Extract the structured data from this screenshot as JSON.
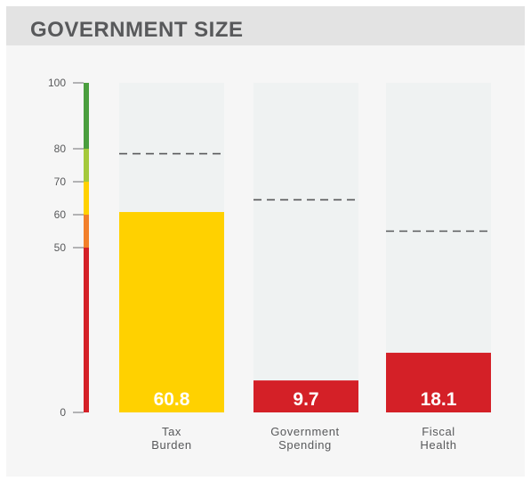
{
  "header": {
    "title": "GOVERNMENT SIZE"
  },
  "chart_data": {
    "type": "bar",
    "title": "GOVERNMENT SIZE",
    "categories": [
      {
        "lines": [
          "Tax",
          "Burden"
        ]
      },
      {
        "lines": [
          "Government",
          "Spending"
        ]
      },
      {
        "lines": [
          "Fiscal",
          "Health"
        ]
      }
    ],
    "values": [
      60.8,
      9.7,
      18.1
    ],
    "value_labels": [
      "60.8",
      "9.7",
      "18.1"
    ],
    "reference_values": [
      78.5,
      64.5,
      55
    ],
    "ylim": [
      0,
      100
    ],
    "yticks": [
      0,
      50,
      60,
      70,
      80,
      100
    ],
    "ytick_labels": [
      "0",
      "50",
      "60",
      "70",
      "80",
      "100"
    ],
    "grid": false,
    "score_bands": [
      {
        "from": 0,
        "to": 50,
        "color": "#d42027"
      },
      {
        "from": 50,
        "to": 60,
        "color": "#f2802b"
      },
      {
        "from": 60,
        "to": 70,
        "color": "#ffd100"
      },
      {
        "from": 70,
        "to": 80,
        "color": "#a4c93b"
      },
      {
        "from": 80,
        "to": 100,
        "color": "#4a9e3e"
      }
    ],
    "colors": {
      "track": "#eff2f2",
      "reference_line": "#58595b",
      "label_on_bar": "#ffffff",
      "label_above_bar": "#d42027"
    }
  }
}
